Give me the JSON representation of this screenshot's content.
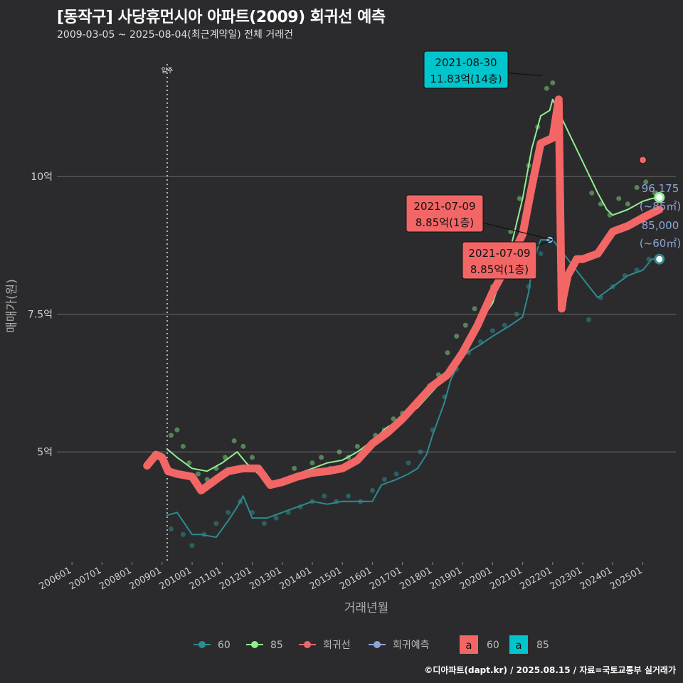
{
  "header": {
    "title": "[동작구] 사당휴먼시아 아파트(2009) 회귀선 예측",
    "subtitle": "2009-03-05 ~ 2025-08-04(최근계약일) 전체 거래건",
    "caption": "©디아파트(dapt.kr) / 2025.08.15 / 자료=국토교통부 실거래가"
  },
  "chart_data": {
    "type": "line",
    "xlabel": "거래년월",
    "ylabel": "매매가(원)",
    "x_ticks": [
      "200601",
      "200701",
      "200801",
      "200901",
      "201001",
      "201101",
      "201201",
      "201301",
      "201401",
      "201501",
      "201601",
      "201701",
      "201801",
      "201901",
      "202001",
      "202101",
      "202201",
      "202301",
      "202401",
      "202501"
    ],
    "y_ticks": [
      {
        "value": 5.0,
        "label": "5억"
      },
      {
        "value": 7.5,
        "label": "7.5억"
      },
      {
        "value": 10.0,
        "label": "10억"
      }
    ],
    "ylim": [
      3.0,
      12.3
    ],
    "xlim": [
      2005.5,
      2026.1
    ],
    "vline": {
      "x": 2009.17,
      "label": "입주"
    },
    "series": [
      {
        "name": "60",
        "color": "#2e8b8f",
        "x": [
          2009.17,
          2009.5,
          2010.0,
          2010.3,
          2010.8,
          2011.2,
          2011.5,
          2011.7,
          2012.0,
          2012.5,
          2013.0,
          2013.5,
          2014.0,
          2014.5,
          2015.0,
          2015.5,
          2016.0,
          2016.3,
          2016.8,
          2017.2,
          2017.5,
          2017.8,
          2018.0,
          2018.2,
          2018.4,
          2018.6,
          2019.0,
          2019.3,
          2019.6,
          2020.0,
          2020.3,
          2020.6,
          2021.0,
          2021.2,
          2021.3,
          2021.5,
          2021.6,
          2021.8,
          2022.0,
          2023.5,
          2024.0,
          2024.5,
          2025.0,
          2025.3,
          2025.55
        ],
        "y": [
          3.85,
          3.9,
          3.5,
          3.5,
          3.45,
          3.75,
          4.0,
          4.2,
          3.8,
          3.8,
          3.9,
          4.0,
          4.1,
          4.05,
          4.1,
          4.1,
          4.1,
          4.4,
          4.5,
          4.6,
          4.7,
          4.95,
          5.3,
          5.6,
          5.9,
          6.3,
          6.75,
          6.85,
          6.95,
          7.1,
          7.2,
          7.3,
          7.45,
          7.9,
          8.3,
          8.7,
          8.85,
          8.85,
          8.85,
          7.8,
          8.0,
          8.2,
          8.3,
          8.5,
          8.5
        ]
      },
      {
        "name": "85",
        "color": "#90ee90",
        "x": [
          2009.17,
          2009.5,
          2010.0,
          2010.5,
          2011.0,
          2011.5,
          2011.8,
          2012.2,
          2012.6,
          2013.0,
          2013.5,
          2014.0,
          2014.5,
          2015.0,
          2015.5,
          2016.0,
          2016.5,
          2017.0,
          2017.5,
          2018.0,
          2018.5,
          2019.0,
          2019.5,
          2020.0,
          2020.3,
          2020.6,
          2021.0,
          2021.3,
          2021.6,
          2021.9,
          2022.0,
          2023.5,
          2023.8,
          2024.0,
          2024.5,
          2025.0,
          2025.3,
          2025.55
        ],
        "y": [
          5.05,
          4.9,
          4.7,
          4.65,
          4.8,
          5.0,
          4.8,
          4.6,
          4.4,
          4.45,
          4.6,
          4.7,
          4.8,
          4.85,
          5.0,
          5.2,
          5.45,
          5.6,
          5.8,
          6.1,
          6.4,
          6.9,
          7.3,
          7.7,
          8.2,
          8.7,
          9.6,
          10.5,
          11.1,
          11.2,
          11.4,
          9.7,
          9.4,
          9.3,
          9.4,
          9.55,
          9.6,
          9.62
        ]
      },
      {
        "name": "회귀선",
        "color": "#f26666",
        "x": [
          2008.5,
          2008.8,
          2009.0,
          2009.2,
          2009.5,
          2010.0,
          2010.3,
          2010.8,
          2011.2,
          2011.7,
          2012.2,
          2012.6,
          2013.0,
          2013.5,
          2014.0,
          2014.5,
          2015.0,
          2015.5,
          2016.0,
          2016.5,
          2017.0,
          2017.5,
          2018.0,
          2018.5,
          2019.0,
          2019.5,
          2020.0,
          2020.5,
          2021.0,
          2021.3,
          2021.6,
          2022.0,
          2022.2,
          2022.3,
          2022.35,
          2022.5,
          2022.8,
          2023.0,
          2023.5,
          2024.0,
          2024.5,
          2025.0,
          2025.55
        ],
        "y": [
          4.75,
          4.95,
          4.9,
          4.65,
          4.6,
          4.55,
          4.3,
          4.5,
          4.65,
          4.7,
          4.7,
          4.4,
          4.45,
          4.55,
          4.62,
          4.65,
          4.7,
          4.85,
          5.15,
          5.35,
          5.6,
          5.9,
          6.2,
          6.4,
          6.8,
          7.3,
          7.9,
          8.4,
          8.95,
          9.8,
          10.6,
          10.7,
          11.4,
          7.6,
          7.8,
          8.2,
          8.5,
          8.5,
          8.6,
          9.0,
          9.1,
          9.25,
          9.4
        ]
      }
    ],
    "regression_markers": [
      {
        "x": 2021.9,
        "y": 8.85,
        "color": "#8cbfff"
      },
      {
        "x": 2025.0,
        "y": 10.3,
        "color": "#f26666"
      }
    ],
    "end_points": [
      {
        "series": "85",
        "x": 2025.55,
        "y": 9.62,
        "label": "96,175",
        "sublabel": "(~85㎡)",
        "color": "#90ee90"
      },
      {
        "series": "60",
        "x": 2025.55,
        "y": 8.5,
        "label": "85,000",
        "sublabel": "(~60㎡)",
        "color": "#2e8b8f"
      }
    ],
    "annotations": [
      {
        "date": "2021-08-30",
        "text": "11.83억(14층)",
        "fill": "#00c5cd",
        "x": 2021.66,
        "y": 11.83
      },
      {
        "date": "2021-07-09",
        "text": "8.85억(1층)",
        "fill": "#f26666",
        "x": 2021.52,
        "y": 8.85
      },
      {
        "date": "2021-07-09",
        "text": "8.85억(1층)",
        "fill": "#f26666",
        "x": 2021.52,
        "y": 8.85
      }
    ],
    "scatter_85": [
      [
        2009.3,
        5.3
      ],
      [
        2009.5,
        5.4
      ],
      [
        2009.7,
        5.1
      ],
      [
        2009.9,
        4.8
      ],
      [
        2010.2,
        4.6
      ],
      [
        2010.5,
        4.5
      ],
      [
        2010.8,
        4.7
      ],
      [
        2011.1,
        4.9
      ],
      [
        2011.4,
        5.2
      ],
      [
        2011.7,
        5.1
      ],
      [
        2012.0,
        4.9
      ],
      [
        2012.4,
        4.6
      ],
      [
        2012.8,
        4.4
      ],
      [
        2013.1,
        4.5
      ],
      [
        2013.4,
        4.7
      ],
      [
        2013.7,
        4.6
      ],
      [
        2014.0,
        4.8
      ],
      [
        2014.3,
        4.9
      ],
      [
        2014.6,
        4.7
      ],
      [
        2014.9,
        5.0
      ],
      [
        2015.2,
        4.9
      ],
      [
        2015.5,
        5.1
      ],
      [
        2015.8,
        5.0
      ],
      [
        2016.1,
        5.3
      ],
      [
        2016.4,
        5.4
      ],
      [
        2016.7,
        5.6
      ],
      [
        2017.0,
        5.7
      ],
      [
        2017.3,
        5.8
      ],
      [
        2017.6,
        6.0
      ],
      [
        2017.9,
        6.2
      ],
      [
        2018.2,
        6.4
      ],
      [
        2018.5,
        6.8
      ],
      [
        2018.8,
        7.1
      ],
      [
        2019.1,
        7.3
      ],
      [
        2019.4,
        7.6
      ],
      [
        2019.7,
        7.5
      ],
      [
        2020.0,
        8.0
      ],
      [
        2020.3,
        8.4
      ],
      [
        2020.6,
        9.0
      ],
      [
        2020.9,
        9.6
      ],
      [
        2021.2,
        10.2
      ],
      [
        2021.5,
        10.9
      ],
      [
        2021.8,
        11.6
      ],
      [
        2022.0,
        11.7
      ],
      [
        2023.3,
        9.7
      ],
      [
        2023.6,
        9.5
      ],
      [
        2023.9,
        9.3
      ],
      [
        2024.2,
        9.6
      ],
      [
        2024.5,
        9.5
      ],
      [
        2024.8,
        9.8
      ],
      [
        2025.1,
        9.9
      ],
      [
        2025.4,
        9.7
      ]
    ],
    "scatter_60": [
      [
        2009.3,
        3.6
      ],
      [
        2009.7,
        3.5
      ],
      [
        2010.0,
        3.3
      ],
      [
        2010.4,
        3.5
      ],
      [
        2010.8,
        3.7
      ],
      [
        2011.2,
        3.9
      ],
      [
        2011.6,
        4.1
      ],
      [
        2012.0,
        3.9
      ],
      [
        2012.4,
        3.7
      ],
      [
        2012.8,
        3.8
      ],
      [
        2013.2,
        3.9
      ],
      [
        2013.6,
        4.0
      ],
      [
        2014.0,
        4.1
      ],
      [
        2014.4,
        4.2
      ],
      [
        2014.8,
        4.1
      ],
      [
        2015.2,
        4.2
      ],
      [
        2015.6,
        4.1
      ],
      [
        2016.0,
        4.3
      ],
      [
        2016.4,
        4.5
      ],
      [
        2016.8,
        4.6
      ],
      [
        2017.2,
        4.8
      ],
      [
        2017.6,
        5.0
      ],
      [
        2018.0,
        5.4
      ],
      [
        2018.4,
        6.0
      ],
      [
        2018.8,
        6.5
      ],
      [
        2019.2,
        6.8
      ],
      [
        2019.6,
        7.0
      ],
      [
        2020.0,
        7.2
      ],
      [
        2020.4,
        7.3
      ],
      [
        2020.8,
        7.5
      ],
      [
        2021.2,
        8.0
      ],
      [
        2021.6,
        8.6
      ],
      [
        2023.2,
        7.4
      ],
      [
        2023.6,
        7.8
      ],
      [
        2024.0,
        8.0
      ],
      [
        2024.4,
        8.2
      ],
      [
        2024.8,
        8.3
      ],
      [
        2025.2,
        8.5
      ]
    ]
  },
  "legend": {
    "items": [
      {
        "label": "60",
        "color": "#2e8b8f",
        "kind": "line-point"
      },
      {
        "label": "85",
        "color": "#90ee90",
        "kind": "line-point"
      },
      {
        "label": "회귀선",
        "color": "#f26666",
        "kind": "line-point"
      },
      {
        "label": "회귀예측",
        "color": "#8ea6d6",
        "kind": "line-point"
      }
    ],
    "box_items": [
      {
        "key": "a",
        "label": "60",
        "fill": "#f26666"
      },
      {
        "key": "a",
        "label": "85",
        "fill": "#00c5cd"
      }
    ]
  }
}
